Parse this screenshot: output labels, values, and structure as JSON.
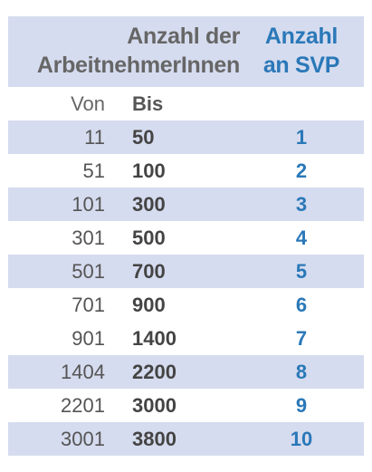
{
  "header": {
    "employees_line1": "Anzahl der",
    "employees_line2": "ArbeitnehmerInnen",
    "svp_line1": "Anzahl",
    "svp_line2": "an SVP"
  },
  "subheader": {
    "von": "Von",
    "bis": "Bis"
  },
  "rows": [
    {
      "von": "11",
      "bis": "50",
      "svp": "1"
    },
    {
      "von": "51",
      "bis": "100",
      "svp": "2"
    },
    {
      "von": "101",
      "bis": "300",
      "svp": "3"
    },
    {
      "von": "301",
      "bis": "500",
      "svp": "4"
    },
    {
      "von": "501",
      "bis": "700",
      "svp": "5"
    },
    {
      "von": "701",
      "bis": "900",
      "svp": "6"
    },
    {
      "von": "901",
      "bis": "1400",
      "svp": "7"
    },
    {
      "von": "1404",
      "bis": "2200",
      "svp": "8"
    },
    {
      "von": "2201",
      "bis": "3000",
      "svp": "9"
    },
    {
      "von": "3001",
      "bis": "3800",
      "svp": "10"
    }
  ],
  "colors": {
    "band": "#d6dcef",
    "accent": "#2a78b8",
    "text": "#555555"
  }
}
